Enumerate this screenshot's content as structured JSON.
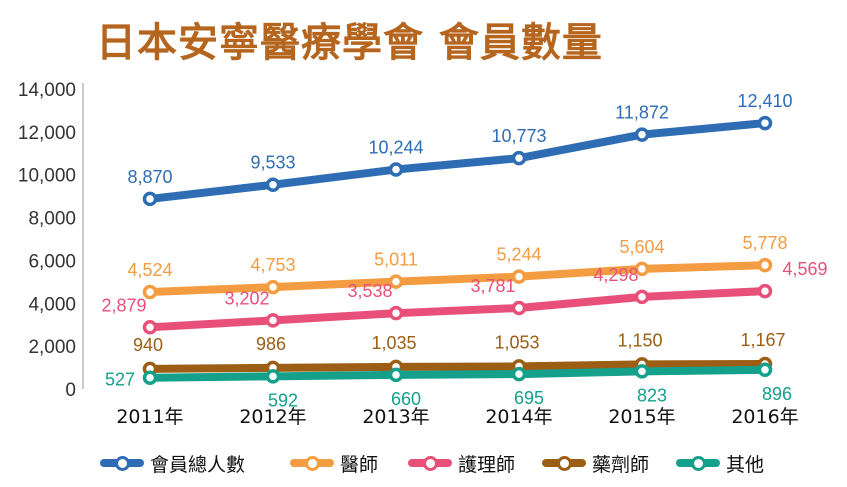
{
  "title": "日本安寧醫療學會 會員數量",
  "chart_data": {
    "type": "line",
    "categories": [
      "2011年",
      "2012年",
      "2013年",
      "2014年",
      "2015年",
      "2016年"
    ],
    "ylim": [
      0,
      14000
    ],
    "yticks": [
      0,
      2000,
      4000,
      6000,
      8000,
      10000,
      12000,
      14000
    ],
    "ytick_labels": [
      "0",
      "2,000",
      "4,000",
      "6,000",
      "8,000",
      "10,000",
      "12,000",
      "14,000"
    ],
    "grid": false,
    "legend_position": "bottom",
    "series": [
      {
        "name": "會員總人數",
        "color": "#2e6db4",
        "values": [
          8870,
          9533,
          10244,
          10773,
          11872,
          12410
        ],
        "labels": [
          "8,870",
          "9,533",
          "10,244",
          "10,773",
          "11,872",
          "12,410"
        ]
      },
      {
        "name": "醫師",
        "color": "#f39c41",
        "values": [
          4524,
          4753,
          5011,
          5244,
          5604,
          5778
        ],
        "labels": [
          "4,524",
          "4,753",
          "5,011",
          "5,244",
          "5,604",
          "5,778"
        ]
      },
      {
        "name": "護理師",
        "color": "#e8507a",
        "values": [
          2879,
          3202,
          3538,
          3781,
          4298,
          4569
        ],
        "labels": [
          "2,879",
          "3,202",
          "3,538",
          "3,781",
          "4,298",
          "4,569"
        ]
      },
      {
        "name": "藥劑師",
        "color": "#9b5e14",
        "values": [
          940,
          986,
          1035,
          1053,
          1150,
          1167
        ],
        "labels": [
          "940",
          "986",
          "1,035",
          "1,053",
          "1,150",
          "1,167"
        ]
      },
      {
        "name": "其他",
        "color": "#15a08c",
        "values": [
          527,
          592,
          660,
          695,
          823,
          896
        ],
        "labels": [
          "527",
          "592",
          "660",
          "695",
          "823",
          "896"
        ]
      }
    ]
  }
}
